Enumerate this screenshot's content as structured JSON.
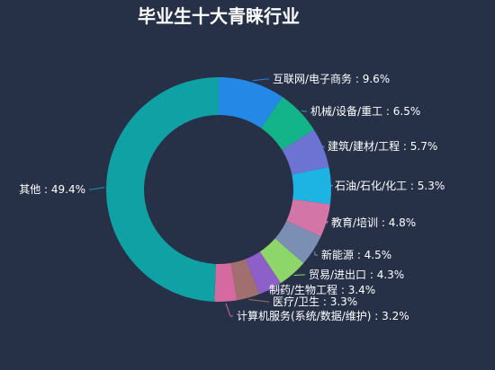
{
  "chart_data": {
    "type": "pie",
    "variant": "donut",
    "title": "毕业生十大青睐行业",
    "legend": "none",
    "start_angle_deg": 0,
    "direction": "clockwise",
    "slices": [
      {
        "name": "互联网/电子商务",
        "value": 9.6,
        "label": "互联网/电子商务 : 9.6%",
        "color": "#2388e6"
      },
      {
        "name": "机械/设备/重工",
        "value": 6.5,
        "label": "机械/设备/重工 : 6.5%",
        "color": "#13b48a"
      },
      {
        "name": "建筑/建材/工程",
        "value": 5.7,
        "label": "建筑/建材/工程 : 5.7%",
        "color": "#6c73d3"
      },
      {
        "name": "石油/石化/化工",
        "value": 5.3,
        "label": "石油/石化/化工 : 5.3%",
        "color": "#1db4e4"
      },
      {
        "name": "教育/培训",
        "value": 4.8,
        "label": "教育/培训 : 4.8%",
        "color": "#d475a7"
      },
      {
        "name": "新能源",
        "value": 4.5,
        "label": "新能源 : 4.5%",
        "color": "#7b8fb4"
      },
      {
        "name": "贸易/进出口",
        "value": 4.3,
        "label": "贸易/进出口 : 4.3%",
        "color": "#8fd66a"
      },
      {
        "name": "制药/生物工程",
        "value": 3.4,
        "label": "制药/生物工程 : 3.4%",
        "color": "#8d5fc8"
      },
      {
        "name": "医疗/卫生",
        "value": 3.3,
        "label": "医疗/卫生 : 3.3%",
        "color": "#a06f6e"
      },
      {
        "name": "计算机服务(系统/数据/维护)",
        "value": 3.2,
        "label": "计算机服务(系统/数据/维护) : 3.2%",
        "color": "#d46aa0"
      },
      {
        "name": "其他",
        "value": 49.4,
        "label": "其他 : 49.4%",
        "color": "#10a1a4"
      }
    ]
  }
}
